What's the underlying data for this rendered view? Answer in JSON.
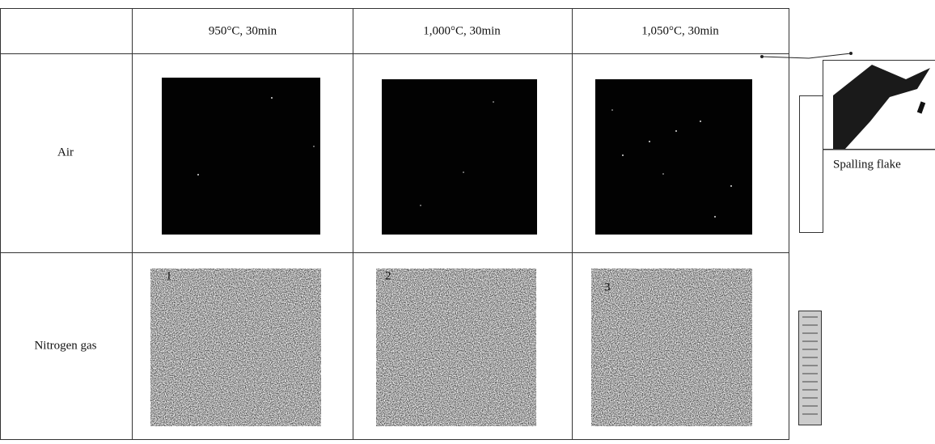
{
  "column_headers": [
    "950°C, 30min",
    "1,000°C, 30min",
    "1,050°C, 30min"
  ],
  "row_headers": [
    "Air",
    "Nitrogen gas"
  ],
  "sample_labels": [
    "1",
    "2",
    "3"
  ],
  "inset_label": "Spalling flake"
}
